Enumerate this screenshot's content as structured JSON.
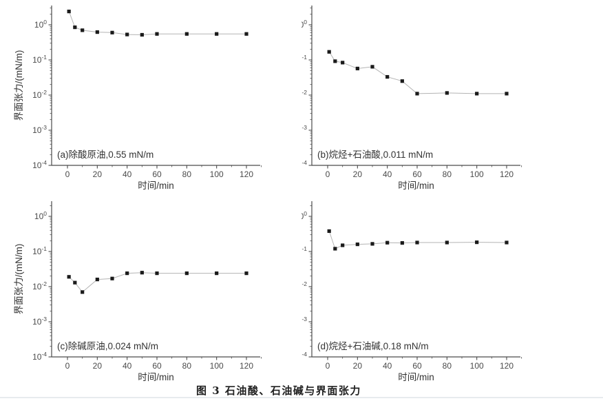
{
  "figure": {
    "caption": "图 3  石油酸、石油碱与界面张力"
  },
  "style": {
    "marker_color": "#1b1b1b",
    "line_color": "#b3b3b3",
    "axis_color": "#4a4a4a",
    "tick_text_color": "#4a4a4a",
    "annotation_color": "#333333"
  },
  "chart_data": [
    {
      "id": "a",
      "type": "line",
      "annotation": "(a)除酸原油,0.55 mN/m",
      "xlabel": "时间/min",
      "ylabel": "界面张力/(mN/m)",
      "x": [
        1,
        5,
        10,
        20,
        30,
        40,
        50,
        60,
        80,
        100,
        120
      ],
      "values": [
        2.4,
        0.85,
        0.7,
        0.62,
        0.6,
        0.53,
        0.52,
        0.55,
        0.55,
        0.55,
        0.55
      ],
      "equilibrium_value_mN_per_m": 0.55,
      "xlim": [
        -10,
        132
      ],
      "ylim": [
        0.0001,
        3.2
      ],
      "yscale": "log",
      "grid": false,
      "x_major_ticks": [
        0,
        20,
        40,
        60,
        80,
        100,
        120
      ],
      "x_minor_ticks": [
        10,
        30,
        50,
        70,
        90,
        110,
        130
      ],
      "y_tick_exponents": [
        0,
        -1,
        -2,
        -3,
        -4
      ]
    },
    {
      "id": "b",
      "type": "line",
      "annotation": "(b)烷烃+石油酸,0.011 mN/m",
      "xlabel": "时间/min",
      "ylabel": "界面张力/(mN/m)",
      "x": [
        1,
        5,
        10,
        20,
        30,
        40,
        50,
        60,
        80,
        100,
        120
      ],
      "values": [
        0.17,
        0.092,
        0.084,
        0.057,
        0.064,
        0.033,
        0.025,
        0.011,
        0.0115,
        0.011,
        0.011
      ],
      "equilibrium_value_mN_per_m": 0.011,
      "xlim": [
        -10,
        132
      ],
      "ylim": [
        0.0001,
        3.2
      ],
      "yscale": "log",
      "grid": false,
      "x_major_ticks": [
        0,
        20,
        40,
        60,
        80,
        100,
        120
      ],
      "x_minor_ticks": [
        10,
        30,
        50,
        70,
        90,
        110,
        130
      ],
      "y_tick_exponents": [
        0,
        -1,
        -2,
        -3,
        -4
      ]
    },
    {
      "id": "c",
      "type": "line",
      "annotation": "(c)除碱原油,0.024 mN/m",
      "xlabel": "时间/min",
      "ylabel": "界面张力/(mN/m)",
      "x": [
        1,
        5,
        10,
        20,
        30,
        40,
        50,
        60,
        80,
        100,
        120
      ],
      "values": [
        0.019,
        0.013,
        0.007,
        0.016,
        0.017,
        0.024,
        0.025,
        0.024,
        0.024,
        0.024,
        0.024
      ],
      "equilibrium_value_mN_per_m": 0.024,
      "xlim": [
        -10,
        132
      ],
      "ylim": [
        0.0001,
        2.7
      ],
      "yscale": "log",
      "grid": false,
      "x_major_ticks": [
        0,
        20,
        40,
        60,
        80,
        100,
        120
      ],
      "x_minor_ticks": [
        10,
        30,
        50,
        70,
        90,
        110,
        130
      ],
      "y_tick_exponents": [
        0,
        -1,
        -2,
        -3,
        -4
      ]
    },
    {
      "id": "d",
      "type": "line",
      "annotation": "(d)烷烃+石油碱,0.18 mN/m",
      "xlabel": "时间/min",
      "ylabel": "界面张力/(mN/m)",
      "x": [
        1,
        5,
        10,
        20,
        30,
        40,
        50,
        60,
        80,
        100,
        120
      ],
      "values": [
        0.38,
        0.12,
        0.15,
        0.16,
        0.165,
        0.178,
        0.175,
        0.18,
        0.18,
        0.183,
        0.18
      ],
      "equilibrium_value_mN_per_m": 0.18,
      "xlim": [
        -10,
        132
      ],
      "ylim": [
        0.0001,
        2.7
      ],
      "yscale": "log",
      "grid": false,
      "x_major_ticks": [
        0,
        20,
        40,
        60,
        80,
        100,
        120
      ],
      "x_minor_ticks": [
        10,
        30,
        50,
        70,
        90,
        110,
        130
      ],
      "y_tick_exponents": [
        0,
        -1,
        -2,
        -3,
        -4
      ]
    }
  ]
}
